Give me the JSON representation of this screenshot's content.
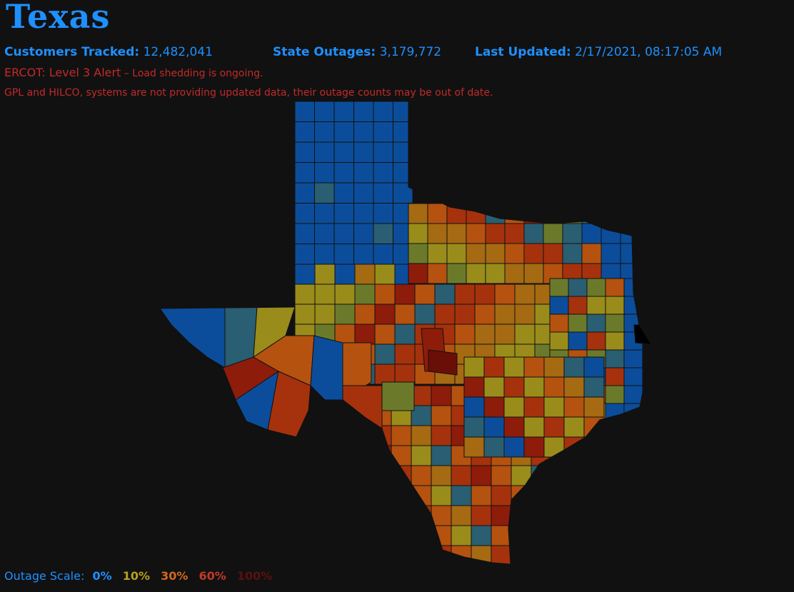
{
  "header": {
    "title": "Texas",
    "customers_label": "Customers Tracked:",
    "customers_value": "12,482,041",
    "outages_label": "State Outages:",
    "outages_value": "3,179,772",
    "updated_label": "Last Updated:",
    "updated_value": "2/17/2021, 08:17:05 AM"
  },
  "alert": {
    "main": "ERCOT: Level 3 Alert",
    "detail": " – Load shedding is ongoing."
  },
  "note": "GPL and HILCO, systems are not providing updated data, their outage counts may be out of date.",
  "scale": {
    "label": "Outage Scale:",
    "levels": [
      {
        "text": "0%",
        "color": "#1e90ff"
      },
      {
        "text": "10%",
        "color": "#b8a01e"
      },
      {
        "text": "30%",
        "color": "#d2691e"
      },
      {
        "text": "60%",
        "color": "#c0392b"
      },
      {
        "text": "100%",
        "color": "#5a1010"
      }
    ]
  },
  "map_colors": {
    "none": "#0b4d9a",
    "low": "#2a5e72",
    "mid_low": "#6b7a2a",
    "ten": "#9a8c1a",
    "twenty": "#a56a12",
    "thirty": "#b5520f",
    "forty": "#a5320c",
    "sixty": "#8e1c0a",
    "high": "#6a0e08",
    "border": "#111111"
  }
}
